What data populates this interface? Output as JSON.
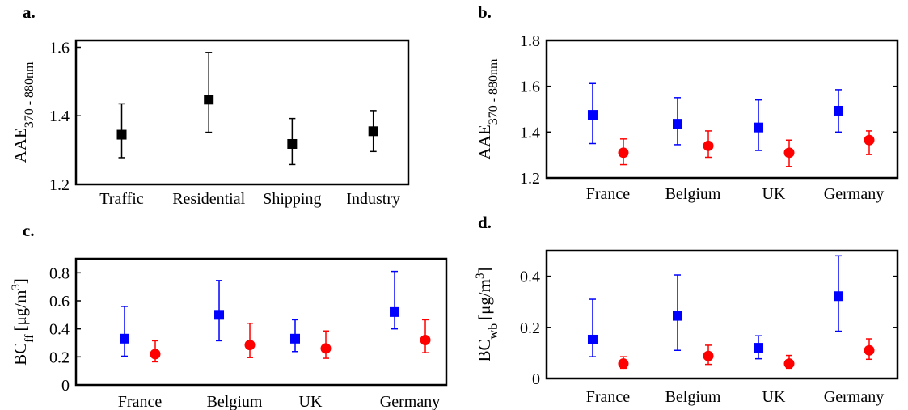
{
  "colors": {
    "blue": "#0000ff",
    "red": "#ff0000",
    "black": "#000000"
  },
  "chart_data": [
    {
      "panel": "a.",
      "type": "scatter",
      "ylabel_main": "AAE",
      "ylabel_sub": "370 - 880nm",
      "categories": [
        "Traffic",
        "Residential",
        "Shipping",
        "Industry"
      ],
      "yticks": [
        "1.2",
        "1.4",
        "1.6"
      ],
      "ytick_values": [
        1.2,
        1.4,
        1.6
      ],
      "ylim": [
        1.2,
        1.62
      ],
      "series": [
        {
          "marker": "square",
          "color": "#000000",
          "values": [
            1.345,
            1.447,
            1.318,
            1.355
          ],
          "lower": [
            1.278,
            1.352,
            1.258,
            1.296
          ],
          "upper": [
            1.435,
            1.585,
            1.392,
            1.415
          ]
        }
      ]
    },
    {
      "panel": "b.",
      "type": "scatter",
      "ylabel_main": "AAE",
      "ylabel_sub": "370 - 880nm",
      "categories": [
        "France",
        "Belgium",
        "UK",
        "Germany"
      ],
      "yticks": [
        "1.2",
        "1.4",
        "1.6",
        "1.8"
      ],
      "ytick_values": [
        1.2,
        1.4,
        1.6,
        1.8
      ],
      "ylim": [
        1.2,
        1.8
      ],
      "series": [
        {
          "marker": "square",
          "color": "#0000ff",
          "values": [
            1.475,
            1.436,
            1.42,
            1.493
          ],
          "lower": [
            1.35,
            1.345,
            1.32,
            1.4
          ],
          "upper": [
            1.612,
            1.55,
            1.54,
            1.585
          ]
        },
        {
          "marker": "circle",
          "color": "#ff0000",
          "values": [
            1.31,
            1.34,
            1.31,
            1.365
          ],
          "lower": [
            1.258,
            1.29,
            1.25,
            1.302
          ],
          "upper": [
            1.37,
            1.405,
            1.365,
            1.405
          ]
        }
      ]
    },
    {
      "panel": "c.",
      "type": "scatter",
      "ylabel_main": "BC",
      "ylabel_sub": "ff",
      "ylabel_unit": "[μg/m",
      "ylabel_sup": "3",
      "ylabel_end": "]",
      "categories": [
        "France",
        "Belgium",
        "UK",
        "Germany"
      ],
      "yticks": [
        "0",
        "0.2",
        "0.4",
        "0.6",
        "0.8"
      ],
      "ytick_values": [
        0,
        0.2,
        0.4,
        0.6,
        0.8
      ],
      "ylim": [
        0,
        0.9
      ],
      "series": [
        {
          "marker": "square",
          "color": "#0000ff",
          "values": [
            0.33,
            0.5,
            0.33,
            0.52
          ],
          "lower": [
            0.205,
            0.315,
            0.238,
            0.4
          ],
          "upper": [
            0.56,
            0.745,
            0.465,
            0.81
          ]
        },
        {
          "marker": "circle",
          "color": "#ff0000",
          "values": [
            0.22,
            0.285,
            0.26,
            0.32
          ],
          "lower": [
            0.165,
            0.195,
            0.19,
            0.23
          ],
          "upper": [
            0.315,
            0.44,
            0.385,
            0.465
          ]
        }
      ]
    },
    {
      "panel": "d.",
      "type": "scatter",
      "ylabel_main": "BC",
      "ylabel_sub": "wb",
      "ylabel_unit": "[μg/m",
      "ylabel_sup": "3",
      "ylabel_end": "]",
      "categories": [
        "France",
        "Belgium",
        "UK",
        "Germany"
      ],
      "yticks": [
        "0",
        "0.2",
        "0.4"
      ],
      "ytick_values": [
        0,
        0.2,
        0.4
      ],
      "ylim": [
        0,
        0.5
      ],
      "series": [
        {
          "marker": "square",
          "color": "#0000ff",
          "values": [
            0.152,
            0.245,
            0.12,
            0.322
          ],
          "lower": [
            0.085,
            0.11,
            0.077,
            0.185
          ],
          "upper": [
            0.31,
            0.405,
            0.167,
            0.48
          ]
        },
        {
          "marker": "circle",
          "color": "#ff0000",
          "values": [
            0.058,
            0.088,
            0.058,
            0.11
          ],
          "lower": [
            0.04,
            0.055,
            0.04,
            0.075
          ],
          "upper": [
            0.085,
            0.13,
            0.09,
            0.155
          ]
        }
      ]
    }
  ]
}
